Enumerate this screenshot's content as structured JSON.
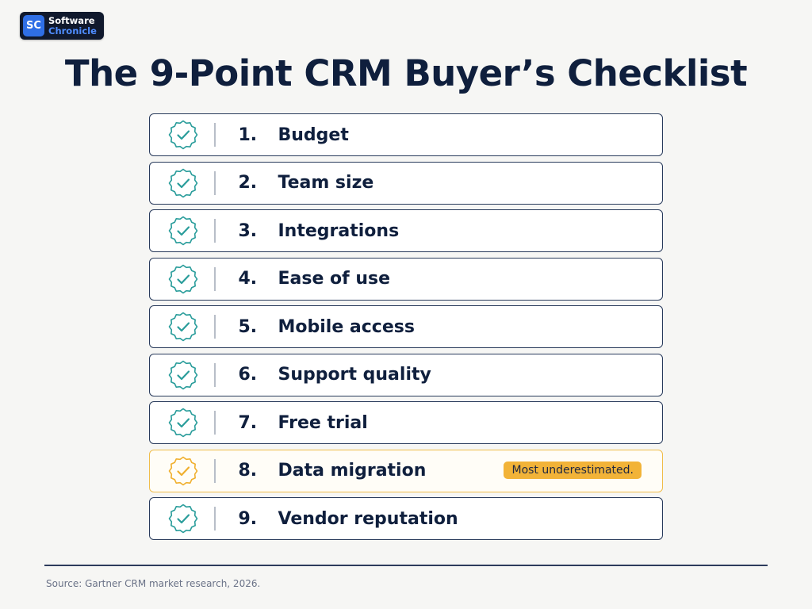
{
  "logo": {
    "badge": "SC",
    "line1": "Software",
    "line2": "Chronicle"
  },
  "title": "The 9-Point CRM Buyer’s Checklist",
  "items": [
    {
      "number": "1.",
      "label": "Budget",
      "icon": "check-badge-icon"
    },
    {
      "number": "2.",
      "label": "Team size",
      "icon": "check-badge-icon"
    },
    {
      "number": "3.",
      "label": "Integrations",
      "icon": "check-badge-icon"
    },
    {
      "number": "4.",
      "label": "Ease of use",
      "icon": "check-badge-icon"
    },
    {
      "number": "5.",
      "label": "Mobile access",
      "icon": "check-badge-icon"
    },
    {
      "number": "6.",
      "label": "Support quality",
      "icon": "check-badge-icon"
    },
    {
      "number": "7.",
      "label": "Free trial",
      "icon": "check-badge-icon"
    },
    {
      "number": "8.",
      "label": "Data migration",
      "icon": "check-badge-icon",
      "highlight": true,
      "badge": "Most underestimated."
    },
    {
      "number": "9.",
      "label": "Vendor reputation",
      "icon": "check-badge-icon"
    }
  ],
  "source": "Source: Gartner CRM market research, 2026.",
  "colors": {
    "check_default": "#2a9d9b",
    "check_highlight": "#f0b030",
    "badge_bg": "#f2b338",
    "title": "#0f1f3d",
    "logo_accent": "#2f6fe6"
  }
}
